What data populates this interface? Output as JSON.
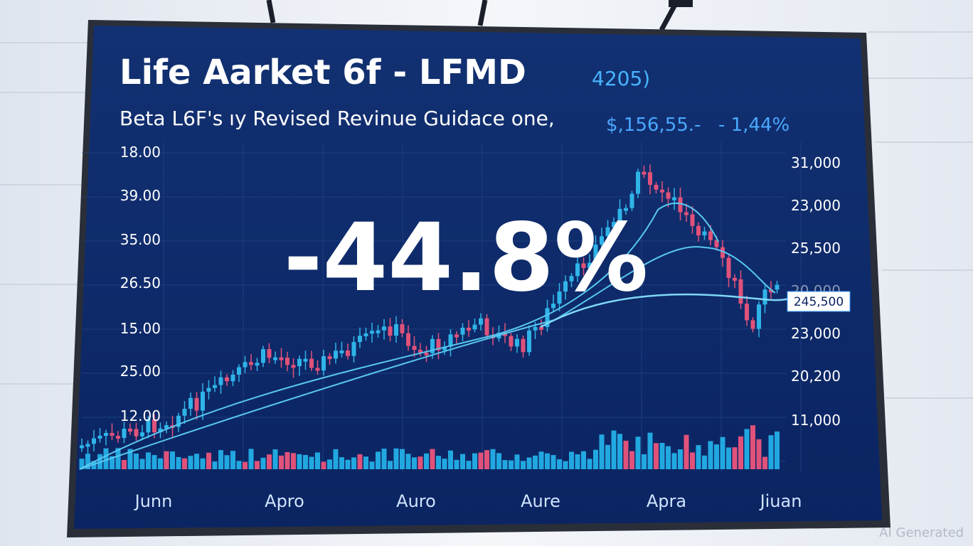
{
  "title": "Life Aarket 6f - LFMD",
  "title_suffix": "4205)",
  "subtitle": "Beta L6F's ıy Revised Revinue Guidace one,",
  "subtitle_price": "$,156,55.-",
  "subtitle_change": "- 1,44%",
  "big_label": "-44.8%",
  "left_axis": [
    "18.00",
    "39.00",
    "35.00",
    "26.50",
    "15.00",
    "25.00",
    "12.00"
  ],
  "right_axis": [
    "31,000",
    "23,000",
    "25,500",
    "20,000",
    "23,000",
    "20,200",
    "11,000"
  ],
  "price_tag": "245,500",
  "x_labels": [
    "Junn",
    "Apro",
    "Auro",
    "Aure",
    "Apra",
    "Jiuan"
  ],
  "watermark": "AI Generated"
}
